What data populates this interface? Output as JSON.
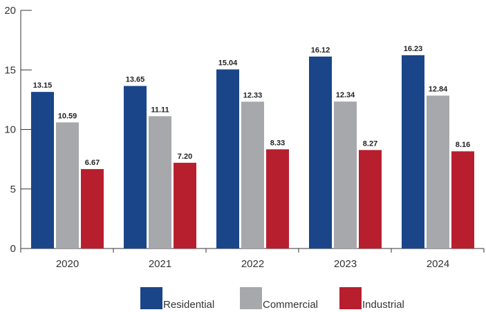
{
  "chart_data": {
    "type": "bar",
    "categories": [
      "2020",
      "2021",
      "2022",
      "2023",
      "2024"
    ],
    "series": [
      {
        "name": "Residential",
        "color": "#1a4589",
        "values": [
          13.15,
          13.65,
          15.04,
          16.12,
          16.23
        ],
        "labels": [
          "13.15",
          "13.65",
          "15.04",
          "16.12",
          "16.23"
        ]
      },
      {
        "name": "Commercial",
        "color": "#a7a8ab",
        "values": [
          10.59,
          11.11,
          12.33,
          12.34,
          12.84
        ],
        "labels": [
          "10.59",
          "11.11",
          "12.33",
          "12.34",
          "12.84"
        ]
      },
      {
        "name": "Industrial",
        "color": "#b81f2e",
        "values": [
          6.67,
          7.2,
          8.33,
          8.27,
          8.16
        ],
        "labels": [
          "6.67",
          "7.20",
          "8.33",
          "8.27",
          "8.16"
        ]
      }
    ],
    "y_ticks": [
      "0",
      "5",
      "10",
      "15",
      "20"
    ],
    "ylim": [
      0,
      20
    ],
    "grid": false,
    "legend_position": "bottom"
  }
}
